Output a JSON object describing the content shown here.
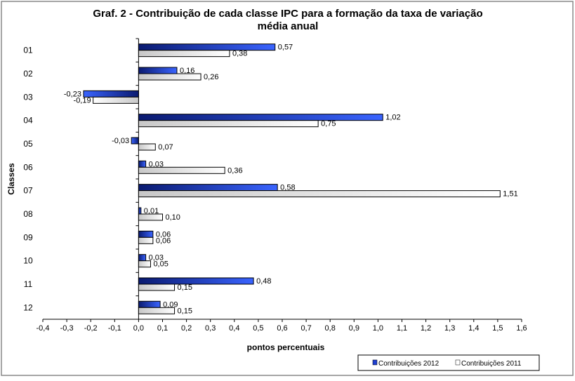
{
  "chart_data": {
    "type": "bar",
    "orientation": "horizontal",
    "title": "Graf. 2 - Contribuição de cada classe IPC para a formação da taxa de variação média anual",
    "title_lines": [
      "Graf. 2 - Contribuição de cada classe IPC para a formação da taxa de variação",
      "média anual"
    ],
    "xlabel": "pontos percentuais",
    "ylabel": "Classes",
    "categories": [
      "01",
      "02",
      "03",
      "04",
      "05",
      "06",
      "07",
      "08",
      "09",
      "10",
      "11",
      "12"
    ],
    "series": [
      {
        "name": "Contribuições 2012",
        "color": "#1f3fd0",
        "values": [
          0.57,
          0.16,
          -0.23,
          1.02,
          -0.03,
          0.03,
          0.58,
          0.01,
          0.06,
          0.03,
          0.48,
          0.09
        ],
        "labels": [
          "0,57",
          "0,16",
          "-0,23",
          "1,02",
          "-0,03",
          "0,03",
          "0,58",
          "0,01",
          "0,06",
          "0,03",
          "0,48",
          "0,09"
        ]
      },
      {
        "name": "Contribuições 2011",
        "color": "#e0e0e0",
        "values": [
          0.38,
          0.26,
          -0.19,
          0.75,
          0.07,
          0.36,
          1.51,
          0.1,
          0.06,
          0.05,
          0.15,
          0.15
        ],
        "labels": [
          "0,38",
          "0,26",
          "-0,19",
          "0,75",
          "0,07",
          "0,36",
          "1,51",
          "0,10",
          "0,06",
          "0,05",
          "0,15",
          "0,15"
        ]
      }
    ],
    "xlim": [
      -0.4,
      1.6
    ],
    "xticks": [
      "-0,4",
      "-0,3",
      "-0,2",
      "-0,1",
      "0,0",
      "0,1",
      "0,2",
      "0,3",
      "0,4",
      "0,5",
      "0,6",
      "0,7",
      "0,8",
      "0,9",
      "1,0",
      "1,1",
      "1,2",
      "1,3",
      "1,4",
      "1,5",
      "1,6"
    ],
    "grid": false,
    "legend": "bottom-right"
  }
}
